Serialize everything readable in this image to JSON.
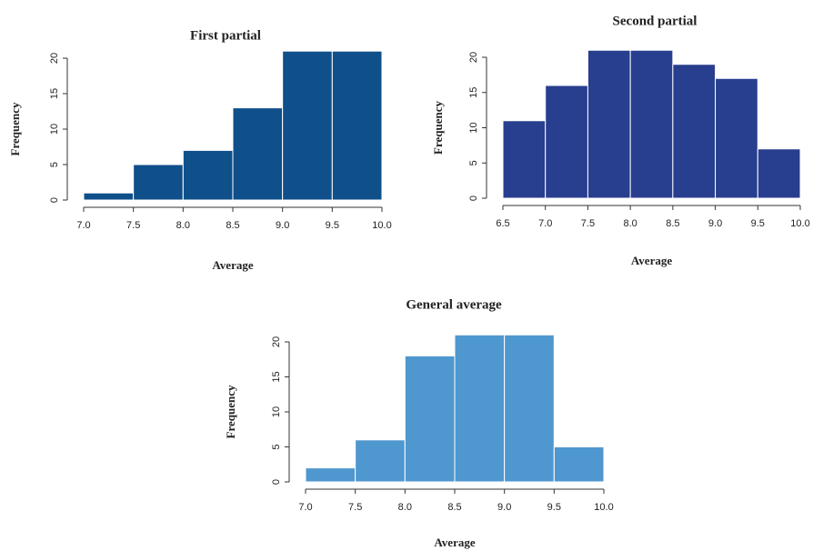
{
  "chart_data": [
    {
      "type": "histogram",
      "title": "First partial",
      "xlabel": "Average",
      "ylabel": "Frequency",
      "color": "#0f4f8a",
      "bins": [
        7.0,
        7.5,
        8.0,
        8.5,
        9.0,
        9.5,
        10.0
      ],
      "values": [
        1,
        5,
        7,
        13,
        21,
        21
      ],
      "xlim": [
        7.0,
        10.0
      ],
      "ylim": [
        0,
        21
      ],
      "xticks": [
        {
          "value": 7,
          "label": "7.0"
        },
        7.5,
        {
          "value": 8,
          "label": "8.0"
        },
        8.5,
        {
          "value": 9,
          "label": "9.0"
        },
        9.5,
        {
          "value": 10,
          "label": "10.0"
        }
      ],
      "yticks": [
        0,
        5,
        10,
        15,
        20
      ]
    },
    {
      "type": "histogram",
      "title": "Second partial",
      "xlabel": "Average",
      "ylabel": "Frequency",
      "color": "#283e8e",
      "bins": [
        6.5,
        7.0,
        7.5,
        8.0,
        8.5,
        9.0,
        9.5,
        10.0
      ],
      "values": [
        11,
        16,
        21,
        21,
        19,
        17,
        7
      ],
      "xlim": [
        6.5,
        10.0
      ],
      "ylim": [
        0,
        21
      ],
      "xticks": [
        6.5,
        {
          "value": 7,
          "label": "7.0"
        },
        7.5,
        {
          "value": 8,
          "label": "8.0"
        },
        8.5,
        {
          "value": 9,
          "label": "9.0"
        },
        9.5,
        {
          "value": 10,
          "label": "10.0"
        }
      ],
      "yticks": [
        0,
        5,
        10,
        15,
        20
      ]
    },
    {
      "type": "histogram",
      "title": "General average",
      "xlabel": "Average",
      "ylabel": "Frequency",
      "color": "#4f97cf",
      "bins": [
        7.0,
        7.5,
        8.0,
        8.5,
        9.0,
        9.5,
        10.0
      ],
      "values": [
        2,
        6,
        18,
        21,
        21,
        5
      ],
      "xlim": [
        7.0,
        10.0
      ],
      "ylim": [
        0,
        21
      ],
      "xticks": [
        {
          "value": 7,
          "label": "7.0"
        },
        7.5,
        {
          "value": 8,
          "label": "8.0"
        },
        8.5,
        {
          "value": 9,
          "label": "9.0"
        },
        9.5,
        {
          "value": 10,
          "label": "10.0"
        }
      ],
      "yticks": [
        0,
        5,
        10,
        15,
        20
      ]
    }
  ]
}
